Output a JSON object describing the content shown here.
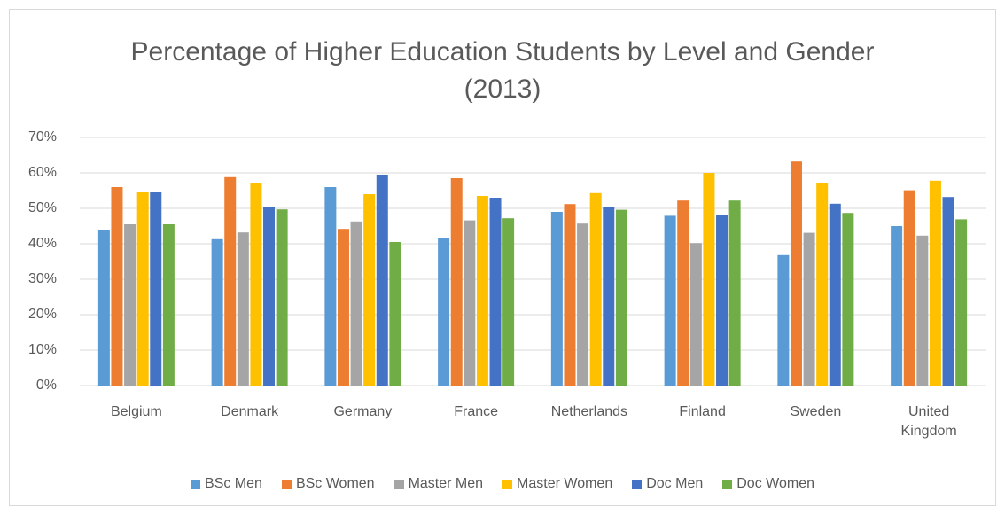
{
  "chart_data": {
    "type": "bar",
    "title": "Percentage of Higher Education Students by Level and Gender (2013)",
    "categories": [
      "Belgium",
      "Denmark",
      "Germany",
      "France",
      "Netherlands",
      "Finland",
      "Sweden",
      "United Kingdom"
    ],
    "series": [
      {
        "name": "BSc Men",
        "color": "#5B9BD5",
        "values": [
          44,
          41.3,
          56,
          41.6,
          49,
          47.9,
          36.8,
          45
        ]
      },
      {
        "name": "BSc Women",
        "color": "#ED7D31",
        "values": [
          56,
          58.8,
          44.2,
          58.5,
          51.2,
          52.2,
          63.2,
          55.1
        ]
      },
      {
        "name": "Master Men",
        "color": "#A5A5A5",
        "values": [
          45.5,
          43.2,
          46.3,
          46.6,
          45.7,
          40.2,
          43.1,
          42.3
        ]
      },
      {
        "name": "Master Women",
        "color": "#FFC000",
        "values": [
          54.5,
          57,
          54,
          53.5,
          54.3,
          60,
          57,
          57.8
        ]
      },
      {
        "name": "Doc Men",
        "color": "#4472C4",
        "values": [
          54.5,
          50.3,
          59.5,
          53,
          50.4,
          48,
          51.3,
          53.2
        ]
      },
      {
        "name": "Doc Women",
        "color": "#70AD47",
        "values": [
          45.5,
          49.7,
          40.5,
          47.2,
          49.6,
          52.2,
          48.7,
          46.9
        ]
      }
    ],
    "ylim": [
      0,
      70
    ],
    "yticks": [
      {
        "value": 0,
        "label": "0%"
      },
      {
        "value": 10,
        "label": "10%"
      },
      {
        "value": 20,
        "label": "20%"
      },
      {
        "value": 30,
        "label": "30%"
      },
      {
        "value": 40,
        "label": "40%"
      },
      {
        "value": 50,
        "label": "50%"
      },
      {
        "value": 60,
        "label": "60%"
      },
      {
        "value": 70,
        "label": "70%"
      }
    ],
    "grid": true,
    "legend": "bottom"
  }
}
